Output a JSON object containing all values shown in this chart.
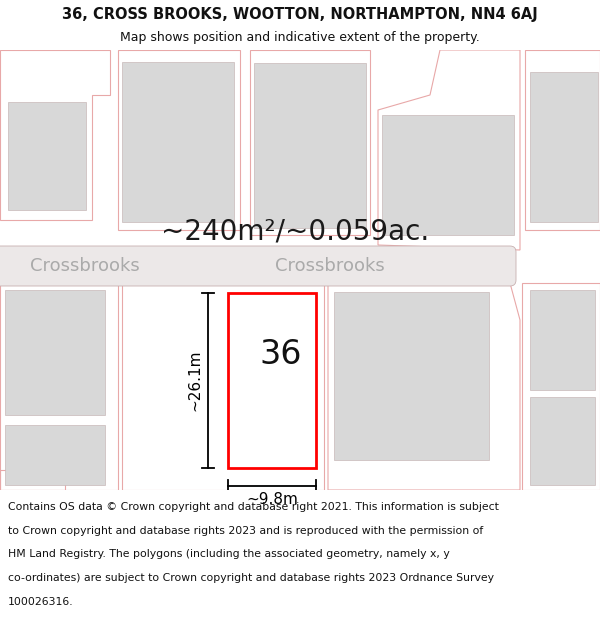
{
  "title_line1": "36, CROSS BROOKS, WOOTTON, NORTHAMPTON, NN4 6AJ",
  "title_line2": "Map shows position and indicative extent of the property.",
  "area_text": "~240m²/~0.059ac.",
  "street_name": "Crossbrooks",
  "property_number": "36",
  "dim_height": "~26.1m",
  "dim_width": "~9.8m",
  "footer_lines": [
    "Contains OS data © Crown copyright and database right 2021. This information is subject",
    "to Crown copyright and database rights 2023 and is reproduced with the permission of",
    "HM Land Registry. The polygons (including the associated geometry, namely x, y",
    "co-ordinates) are subject to Crown copyright and database rights 2023 Ordnance Survey",
    "100026316."
  ],
  "bg_color": "#ffffff",
  "map_bg": "#ffffff",
  "building_fc": "#d8d8d8",
  "building_ec": "#c8b8b8",
  "parcel_ec": "#e8a8a8",
  "road_fc": "#ece4e4",
  "road_ec": "#c8a8a8",
  "highlight_color": "#ff0000",
  "highlight_fill": "#ffffff",
  "dim_line_color": "#000000",
  "title_fontsize": 10.5,
  "subtitle_fontsize": 9.0,
  "area_fontsize": 20,
  "street_fontsize": 13,
  "number_fontsize": 24,
  "dim_fontsize": 11,
  "footer_fontsize": 7.8
}
